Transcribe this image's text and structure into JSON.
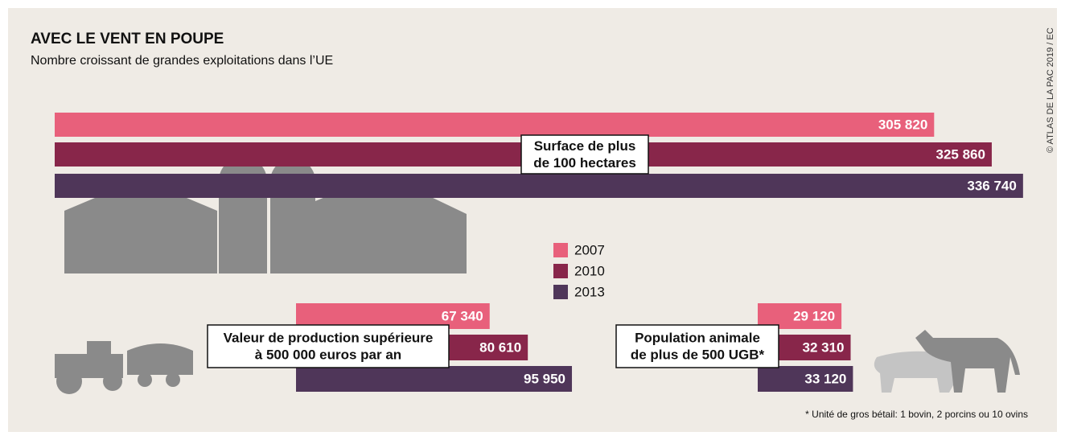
{
  "chart_data": {
    "type": "bar",
    "title": "AVEC LE VENT EN POUPE",
    "subtitle": "Nombre croissant de grandes exploitations dans l’UE",
    "categories": [
      [
        "Surface de plus",
        "de 100 hectares"
      ],
      [
        "Valeur de production supérieure",
        "à 500 000 euros par an"
      ],
      [
        "Population animale",
        "de plus de 500 UGB*"
      ]
    ],
    "series": [
      {
        "name": "2007",
        "color": "#e8607b",
        "values": [
          305820,
          67340,
          29120
        ],
        "value_labels": [
          "305 820",
          "67 340",
          "29 120"
        ]
      },
      {
        "name": "2010",
        "color": "#88264a",
        "values": [
          325860,
          80610,
          32310
        ],
        "value_labels": [
          "325 860",
          "80 610",
          "32 310"
        ]
      },
      {
        "name": "2013",
        "color": "#4f3659",
        "values": [
          336740,
          95950,
          33120
        ],
        "value_labels": [
          "336 740",
          "95 950",
          "33 120"
        ]
      }
    ],
    "footnote": "* Unité de gros bétail: 1 bovin, 2 porcins  ou 10 ovins",
    "credit": "© ATLAS DE LA PAC 2019 / EC"
  }
}
